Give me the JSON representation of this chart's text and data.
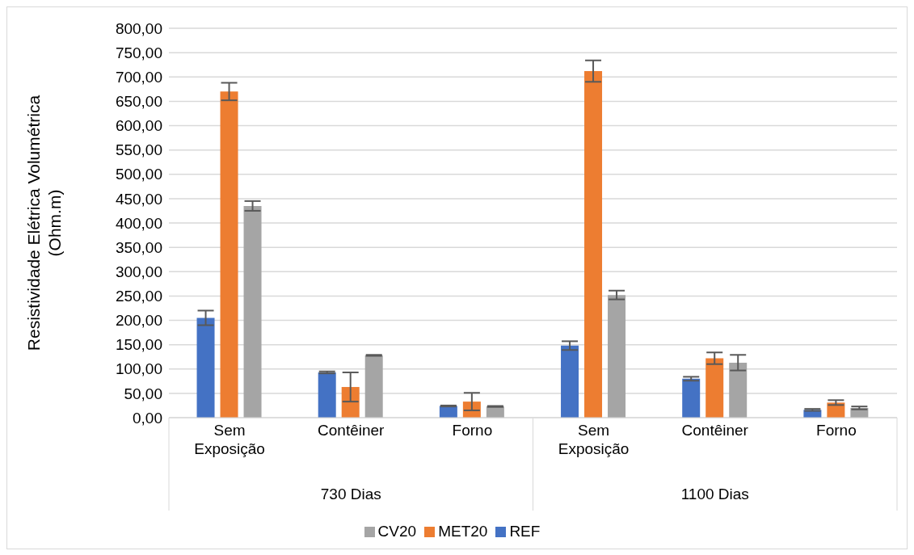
{
  "chart_data": {
    "type": "bar",
    "ylabel": "Resistividade Elétrica  Volumétrica\n(Ohm.m)",
    "categories": [
      "Sem Exposição",
      "Contêiner",
      "Forno",
      "Sem Exposição",
      "Contêiner",
      "Forno"
    ],
    "annotations": [
      "730 Dias",
      "1100 Dias"
    ],
    "series": [
      {
        "name": "REF",
        "color": "#4472c4",
        "values": [
          205,
          93,
          24,
          148,
          80,
          16
        ],
        "errors": [
          15,
          2,
          1,
          9,
          4,
          2
        ]
      },
      {
        "name": "MET20",
        "color": "#ed7d31",
        "values": [
          670,
          63,
          33,
          712,
          122,
          31
        ],
        "errors": [
          18,
          30,
          18,
          22,
          12,
          5
        ]
      },
      {
        "name": "CV20",
        "color": "#a5a5a5",
        "values": [
          435,
          128,
          23,
          252,
          113,
          20
        ],
        "errors": [
          10,
          1,
          1,
          9,
          16,
          3
        ]
      }
    ],
    "ylim": [
      0,
      800
    ],
    "yticks": [
      {
        "value": 0,
        "label": "0,00"
      },
      {
        "value": 50,
        "label": "50,00"
      },
      {
        "value": 100,
        "label": "100,00"
      },
      {
        "value": 150,
        "label": "150,00"
      },
      {
        "value": 200,
        "label": "200,00"
      },
      {
        "value": 250,
        "label": "250,00"
      },
      {
        "value": 300,
        "label": "300,00"
      },
      {
        "value": 350,
        "label": "350,00"
      },
      {
        "value": 400,
        "label": "400,00"
      },
      {
        "value": 450,
        "label": "450,00"
      },
      {
        "value": 500,
        "label": "500,00"
      },
      {
        "value": 550,
        "label": "550,00"
      },
      {
        "value": 600,
        "label": "600,00"
      },
      {
        "value": 650,
        "label": "650,00"
      },
      {
        "value": 700,
        "label": "700,00"
      },
      {
        "value": 750,
        "label": "750,00"
      },
      {
        "value": 800,
        "label": "800,00"
      }
    ],
    "grid": "y",
    "legend": "bottom"
  }
}
